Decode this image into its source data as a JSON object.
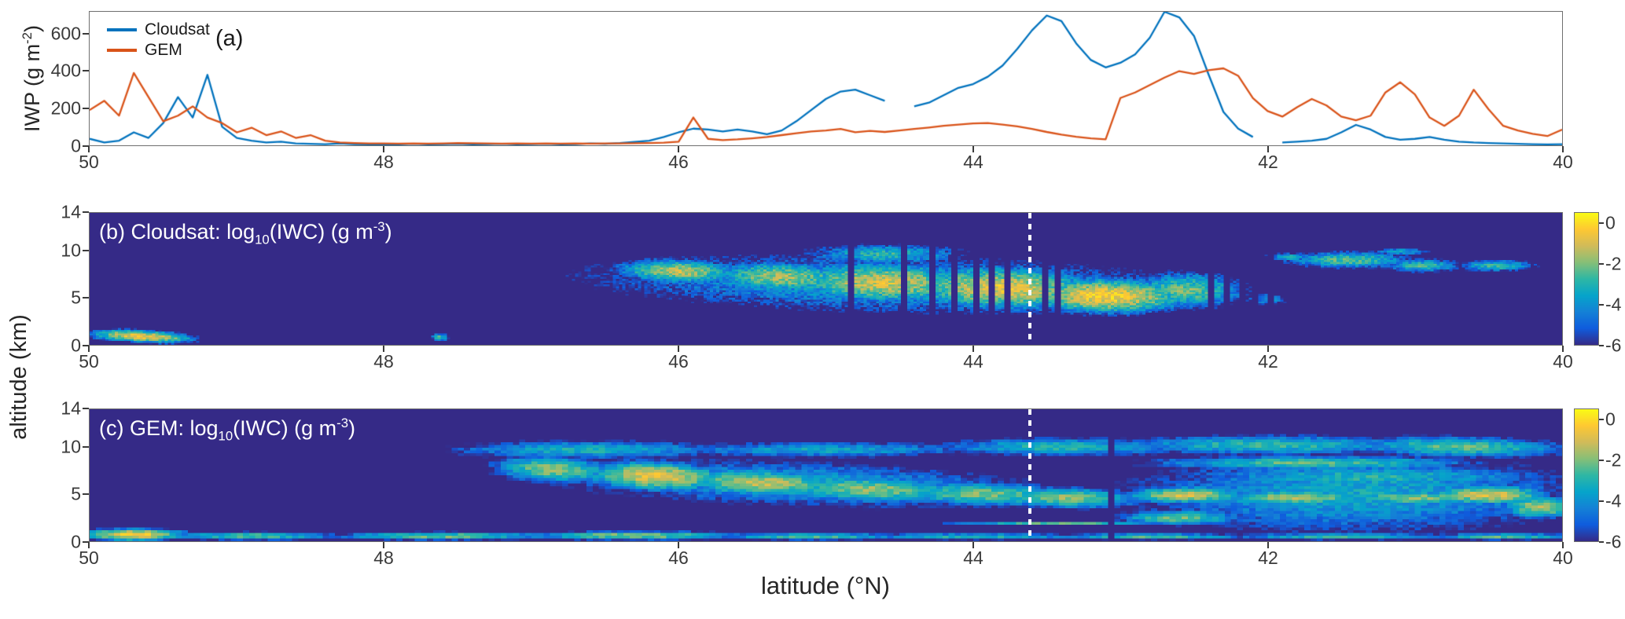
{
  "figure": {
    "xlabel": "latitude (°N)",
    "x_tick_values": [
      50,
      48,
      46,
      44,
      42,
      40
    ],
    "x_tick_labels": [
      "50",
      "48",
      "46",
      "44",
      "42",
      "40"
    ],
    "lat_range": [
      50,
      40
    ],
    "marker_lat": 43.62,
    "colors": {
      "cloudsat_line": "#0072bd",
      "gem_line": "#d95319",
      "axis": "#3a3a3a",
      "background": "#ffffff",
      "marker_line": "#ffffff",
      "heat_background": "#352a87"
    },
    "parula_stops": [
      "#352a87",
      "#0f5cdd",
      "#1481d6",
      "#06a4ca",
      "#2eb7a4",
      "#87bf77",
      "#d1bb59",
      "#fec832",
      "#f9fb15"
    ]
  },
  "panel_a": {
    "tag": "(a)",
    "ylabel": {
      "pre": "IWP (g m",
      "sup": "-2",
      "post": ")"
    },
    "y_tick_values": [
      0,
      200,
      400,
      600
    ],
    "y_tick_labels": [
      "0",
      "200",
      "400",
      "600"
    ],
    "ylim": [
      0,
      720
    ],
    "legend": [
      {
        "label": "Cloudsat",
        "color": "#0072bd"
      },
      {
        "label": "GEM",
        "color": "#d95319"
      }
    ]
  },
  "panel_b": {
    "title": {
      "pre": "(b) Cloudsat: log",
      "sub": "10",
      "mid": "(IWC) (g m",
      "sup": "-3",
      "post": ")"
    },
    "y_tick_values": [
      14,
      10,
      5,
      0
    ],
    "y_tick_labels": [
      "14",
      "10",
      "5",
      "0"
    ]
  },
  "panel_c": {
    "title": {
      "pre": "(c) GEM: log",
      "sub": "10",
      "mid": "(IWC) (g m",
      "sup": "-3",
      "post": ")"
    },
    "y_tick_values": [
      14,
      10,
      5,
      0
    ],
    "y_tick_labels": [
      "14",
      "10",
      "5",
      "0"
    ]
  },
  "shared_ylabel": "altitude (km)",
  "colorbar": {
    "tick_values": [
      0,
      -2,
      -4,
      -6
    ],
    "tick_labels": [
      "0",
      "-2",
      "-4",
      "-6"
    ],
    "axis_range": [
      -6,
      0.52
    ]
  },
  "chart_data": [
    {
      "type": "line",
      "title": "(a) IWP along track",
      "xlabel": "latitude (°N)",
      "ylabel": "IWP (g m-2)",
      "xlim": [
        50,
        40
      ],
      "ylim": [
        0,
        720
      ],
      "x_start": 50.0,
      "x_step": -0.1,
      "series": [
        {
          "name": "Cloudsat",
          "color": "#0072bd",
          "values": [
            35,
            15,
            25,
            70,
            40,
            120,
            260,
            150,
            380,
            100,
            40,
            25,
            15,
            20,
            10,
            8,
            6,
            10,
            6,
            5,
            6,
            5,
            8,
            5,
            6,
            8,
            5,
            6,
            8,
            5,
            6,
            8,
            5,
            6,
            10,
            8,
            12,
            18,
            25,
            45,
            70,
            90,
            85,
            75,
            85,
            75,
            60,
            80,
            130,
            190,
            250,
            290,
            300,
            270,
            240,
            null,
            210,
            230,
            270,
            310,
            330,
            370,
            430,
            520,
            620,
            700,
            670,
            550,
            460,
            420,
            445,
            490,
            580,
            720,
            690,
            590,
            380,
            180,
            90,
            45,
            null,
            15,
            20,
            25,
            35,
            70,
            110,
            85,
            45,
            30,
            35,
            45,
            30,
            20,
            15,
            12,
            10,
            8,
            6,
            5,
            6
          ]
        },
        {
          "name": "GEM",
          "color": "#d95319",
          "values": [
            190,
            240,
            160,
            390,
            260,
            130,
            160,
            210,
            150,
            120,
            70,
            95,
            55,
            75,
            40,
            55,
            25,
            15,
            12,
            10,
            10,
            9,
            10,
            9,
            10,
            12,
            11,
            10,
            9,
            10,
            9,
            10,
            9,
            10,
            9,
            10,
            10,
            11,
            12,
            14,
            20,
            150,
            35,
            28,
            32,
            38,
            45,
            55,
            65,
            75,
            80,
            88,
            70,
            78,
            72,
            80,
            88,
            96,
            105,
            112,
            118,
            120,
            112,
            102,
            88,
            72,
            58,
            46,
            38,
            32,
            255,
            285,
            325,
            365,
            400,
            385,
            405,
            415,
            375,
            255,
            185,
            155,
            205,
            250,
            215,
            155,
            135,
            160,
            285,
            340,
            275,
            150,
            105,
            160,
            300,
            195,
            105,
            80,
            62,
            50,
            85
          ]
        }
      ]
    },
    {
      "type": "heatmap",
      "name": "Cloudsat log10(IWC) (g m-3)",
      "lat_range": [
        50,
        40
      ],
      "alt_range_km": [
        0,
        14
      ],
      "value_range": [
        -6,
        0
      ],
      "background_value": -6.5,
      "falloff": 0.8,
      "noise": 0.8,
      "seed": 42,
      "stripe_half_width": 0.022,
      "gap_stripes": [
        44.83,
        44.47,
        44.28,
        44.12,
        43.98,
        43.87,
        43.76,
        43.52,
        43.42,
        42.38,
        42.28,
        42.18,
        42.08,
        41.98
      ],
      "feature_format": "[lat_center, alt_center_km, lat_halfwidth_deg, alt_halfwidth_km, peak_log10_iwc, tilt_km_per_deg]",
      "features": [
        [
          49.65,
          0.9,
          0.45,
          0.8,
          -0.9,
          0.8
        ],
        [
          47.62,
          0.8,
          0.07,
          0.5,
          -2.8,
          0
        ],
        [
          44.5,
          6.4,
          2.3,
          3.2,
          -3.5,
          0.4
        ],
        [
          46.0,
          7.8,
          0.5,
          1.5,
          -1.6,
          0.5
        ],
        [
          45.3,
          7.2,
          0.6,
          1.9,
          -1.9,
          0.4
        ],
        [
          44.6,
          6.6,
          0.8,
          2.6,
          -1.4,
          0.3
        ],
        [
          43.8,
          6.0,
          0.8,
          2.8,
          -1.1,
          0.3
        ],
        [
          43.1,
          5.2,
          0.7,
          2.3,
          -0.7,
          0.2
        ],
        [
          42.55,
          5.8,
          0.45,
          2.2,
          -2.4,
          0.3
        ],
        [
          44.6,
          9.6,
          0.6,
          1.2,
          -3.2,
          0
        ],
        [
          41.45,
          9.0,
          0.5,
          1.0,
          -2.6,
          0
        ],
        [
          40.95,
          8.4,
          0.3,
          0.8,
          -2.9,
          0
        ],
        [
          40.45,
          8.4,
          0.3,
          0.7,
          -2.9,
          0
        ],
        [
          41.85,
          9.3,
          0.18,
          0.5,
          -3.3,
          0
        ],
        [
          42.0,
          4.8,
          0.15,
          0.7,
          -4.0,
          0
        ],
        [
          41.1,
          9.9,
          0.2,
          0.4,
          -3.5,
          0
        ]
      ]
    },
    {
      "type": "heatmap",
      "name": "GEM log10(IWC) (g m-3)",
      "lat_range": [
        50,
        40
      ],
      "alt_range_km": [
        0,
        14
      ],
      "value_range": [
        -6,
        0
      ],
      "background_value": -6.5,
      "falloff": 0.8,
      "noise": 0.6,
      "seed": 7,
      "stripe_half_width": 0.02,
      "gap_stripes": [
        43.05
      ],
      "feature_format": "[lat_center, alt_center_km, lat_halfwidth_deg, alt_halfwidth_km, peak_log10_iwc, tilt_km_per_deg]",
      "features": [
        [
          49.7,
          0.7,
          0.45,
          0.8,
          -0.7,
          0
        ],
        [
          48.9,
          0.55,
          0.7,
          0.5,
          -2.6,
          0
        ],
        [
          47.6,
          0.55,
          0.9,
          0.5,
          -2.3,
          0
        ],
        [
          46.3,
          0.6,
          0.9,
          0.55,
          -2.0,
          0
        ],
        [
          45.1,
          0.5,
          0.8,
          0.45,
          -2.8,
          0
        ],
        [
          44.0,
          0.5,
          0.9,
          0.4,
          -3.0,
          0
        ],
        [
          42.8,
          0.5,
          0.8,
          0.4,
          -2.7,
          0
        ],
        [
          41.5,
          0.5,
          0.9,
          0.4,
          -2.9,
          0
        ],
        [
          40.4,
          0.5,
          0.6,
          0.4,
          -2.6,
          0
        ],
        [
          43.4,
          1.9,
          0.9,
          0.22,
          -2.6,
          0
        ],
        [
          45.2,
          6.1,
          1.9,
          2.6,
          -3.6,
          0.55
        ],
        [
          46.85,
          7.6,
          0.5,
          1.7,
          -2.0,
          0.8
        ],
        [
          46.15,
          6.9,
          0.6,
          1.9,
          -1.0,
          0.6
        ],
        [
          45.45,
          6.2,
          0.7,
          1.8,
          -1.6,
          0.5
        ],
        [
          44.7,
          5.5,
          0.8,
          1.7,
          -2.1,
          0.4
        ],
        [
          43.95,
          5.0,
          0.8,
          1.5,
          -2.3,
          0.4
        ],
        [
          43.35,
          4.6,
          0.6,
          1.3,
          -2.0,
          0.3
        ],
        [
          46.6,
          9.7,
          1.1,
          1.1,
          -3.3,
          0
        ],
        [
          45.0,
          9.7,
          1.2,
          0.9,
          -3.6,
          0
        ],
        [
          43.4,
          10.0,
          1.0,
          1.1,
          -3.1,
          0
        ],
        [
          42.0,
          10.2,
          1.2,
          1.2,
          -2.9,
          0
        ],
        [
          40.7,
          10.0,
          0.9,
          1.3,
          -2.6,
          0.3
        ],
        [
          41.4,
          5.0,
          1.75,
          4.6,
          -3.6,
          0
        ],
        [
          42.55,
          4.9,
          0.5,
          1.1,
          -1.3,
          0
        ],
        [
          41.8,
          4.6,
          0.7,
          1.0,
          -1.8,
          0
        ],
        [
          41.0,
          4.6,
          0.6,
          0.9,
          -2.0,
          0
        ],
        [
          40.5,
          4.9,
          0.5,
          1.3,
          -1.2,
          0
        ],
        [
          40.15,
          3.6,
          0.3,
          1.4,
          -1.6,
          0
        ],
        [
          41.7,
          8.3,
          1.3,
          0.9,
          -2.5,
          0
        ],
        [
          41.3,
          6.8,
          1.4,
          1.6,
          -3.2,
          0
        ],
        [
          42.6,
          2.5,
          0.5,
          1.0,
          -2.4,
          0
        ]
      ]
    }
  ]
}
